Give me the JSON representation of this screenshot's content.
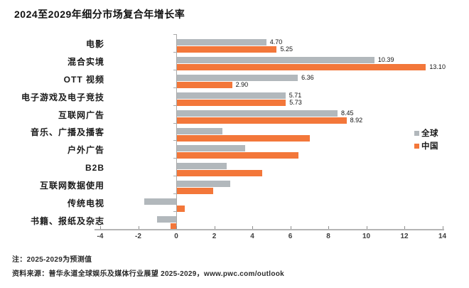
{
  "title": "2024至2029年细分市场复合年增长率",
  "legend": {
    "items": [
      {
        "label": "全球",
        "color": "#b2b8bc"
      },
      {
        "label": "中国",
        "color": "#f3773a"
      }
    ]
  },
  "notes": {
    "line1": "注：2025-2029为预测值",
    "line2": "资料来源：普华永道全球娱乐及媒体行业展望 2025-2029，www.pwc.com/outlook"
  },
  "colors": {
    "global_bar": "#b2b8bc",
    "china_bar": "#f3773a",
    "axis": "#a9a9a9"
  },
  "chart_data": {
    "type": "bar",
    "orientation": "horizontal",
    "title": "2024至2029年细分市场复合年增长率",
    "categories": [
      "电影",
      "混合实境",
      "OTT 视频",
      "电子游戏及电子竞技",
      "互联网广告",
      "音乐、广播及播客",
      "户外广告",
      "B2B",
      "互联网数据使用",
      "传统电视",
      "书籍、报纸及杂志"
    ],
    "series": [
      {
        "name": "全球",
        "color": "#b2b8bc",
        "values": [
          4.7,
          10.39,
          6.36,
          5.71,
          8.45,
          2.4,
          3.6,
          2.6,
          2.8,
          -1.7,
          -1.0
        ],
        "value_labels": [
          "4.70",
          "10.39",
          "6.36",
          "5.71",
          "8.45",
          null,
          null,
          null,
          null,
          null,
          null
        ]
      },
      {
        "name": "中国",
        "color": "#f3773a",
        "values": [
          5.25,
          13.1,
          2.9,
          5.73,
          8.92,
          7.0,
          6.4,
          4.5,
          1.9,
          0.4,
          -0.3
        ],
        "value_labels": [
          "5.25",
          "13.10",
          "2.90",
          "5.73",
          "8.92",
          null,
          null,
          null,
          null,
          null,
          null
        ]
      }
    ],
    "xlim": [
      -4,
      14
    ],
    "x_ticks": [
      -4,
      -2,
      0,
      2,
      4,
      6,
      8,
      10,
      12,
      14
    ],
    "grid": false,
    "legend_position": "right"
  }
}
